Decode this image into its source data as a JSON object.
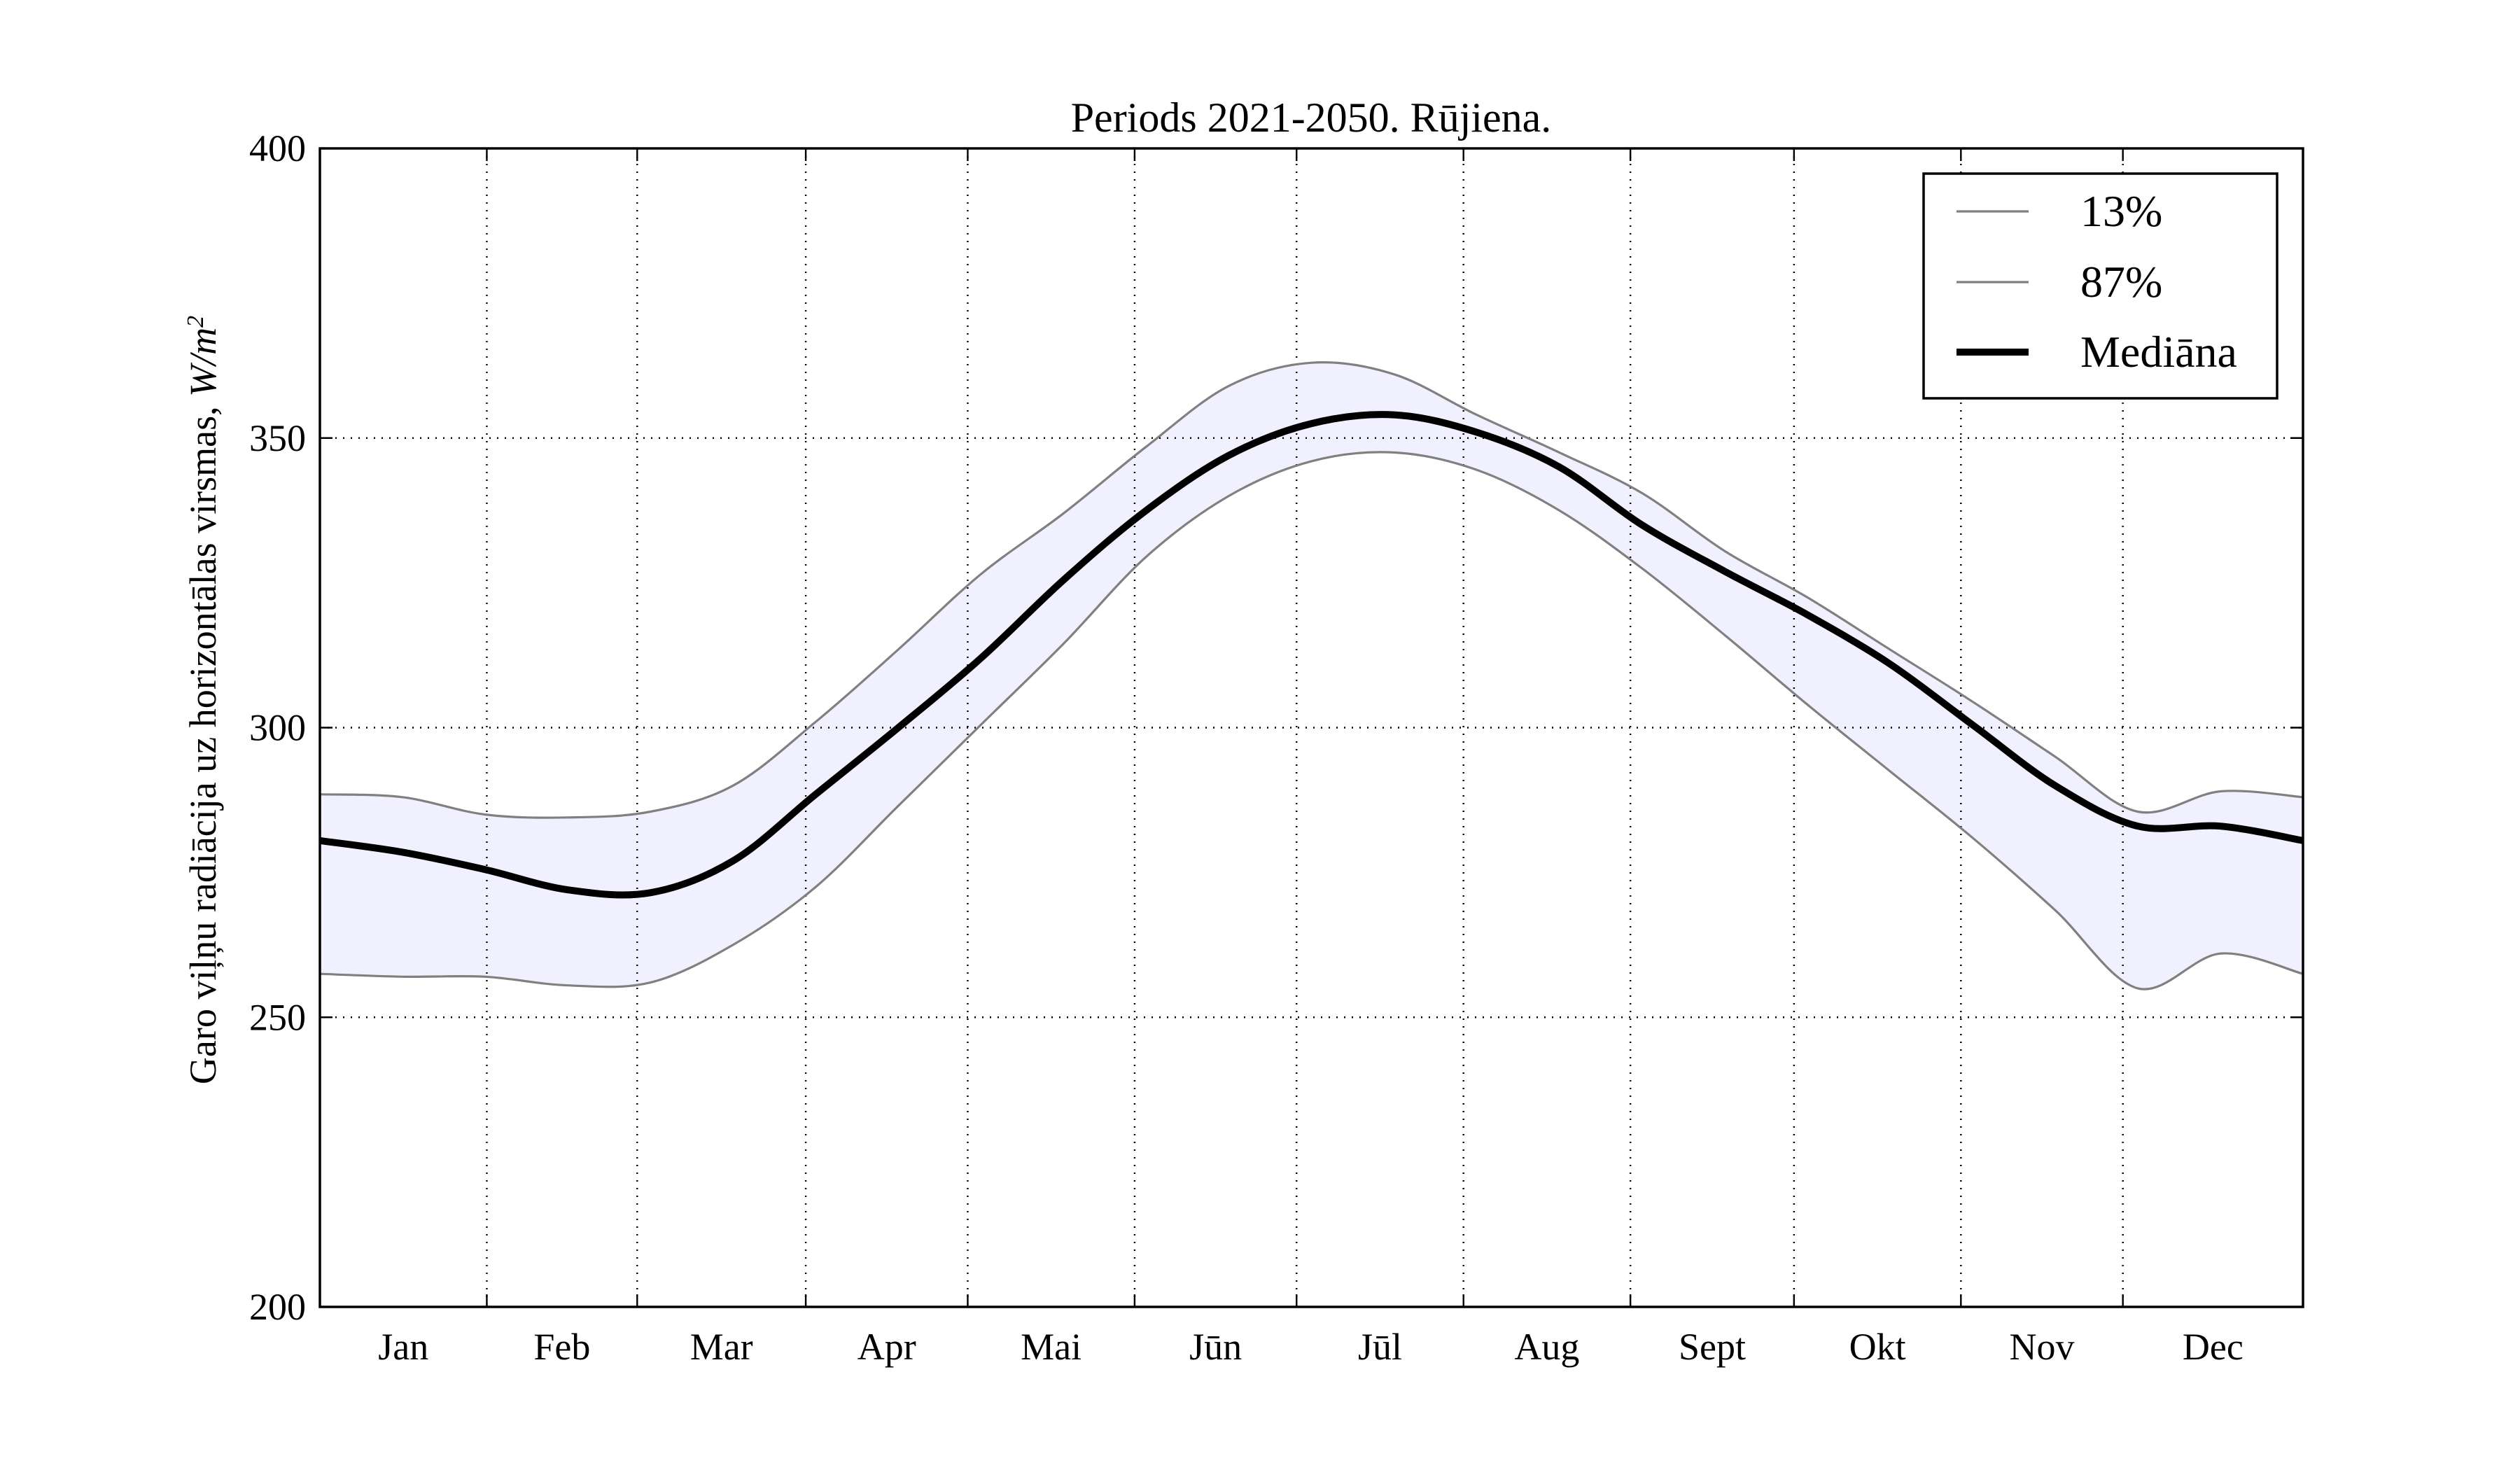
{
  "chart_data": {
    "type": "line",
    "title": "Periods 2021-2050. Rūjiena.",
    "ylabel_main": "Garo viļņu radiācija uz horizontālas virsmas, ",
    "ylabel_unit_base": "W/m",
    "ylabel_unit_exp": "2",
    "ylim": [
      200,
      400
    ],
    "yticks": [
      200,
      250,
      300,
      350,
      400
    ],
    "x_range": [
      0,
      12
    ],
    "month_boundaries": [
      0,
      1.01,
      1.92,
      2.94,
      3.92,
      4.93,
      5.91,
      6.92,
      7.93,
      8.92,
      9.93,
      10.91,
      12
    ],
    "categories": [
      "Jan",
      "Feb",
      "Mar",
      "Apr",
      "Mai",
      "Jūn",
      "Jūl",
      "Aug",
      "Sept",
      "Okt",
      "Nov",
      "Dec"
    ],
    "grid": true,
    "legend_position": "top-right",
    "band_color": "#f0f0fe",
    "x": [
      0,
      0.5,
      1,
      1.5,
      2,
      2.5,
      3,
      3.5,
      4,
      4.5,
      5,
      5.5,
      6,
      6.5,
      7,
      7.5,
      8,
      8.5,
      9,
      9.5,
      10,
      10.5,
      11,
      11.5,
      12
    ],
    "series": [
      {
        "name": "13%",
        "color": "#808080",
        "width": 3.2,
        "values": [
          288.5,
          288,
          285,
          284.5,
          285.5,
          290,
          301,
          313.5,
          326.5,
          337,
          348.5,
          359,
          363,
          361,
          354,
          347.5,
          340.5,
          330.5,
          322.5,
          313.5,
          304.5,
          295,
          285.5,
          289,
          288
        ]
      },
      {
        "name": "87%",
        "color": "#808080",
        "width": 3.2,
        "values": [
          257.5,
          257,
          257,
          255.5,
          256,
          262.5,
          272.5,
          286.5,
          300.5,
          314.5,
          329.5,
          340,
          346,
          347.5,
          344.5,
          337.5,
          327.5,
          316,
          304,
          292.5,
          281,
          268.5,
          255,
          261,
          257.5
        ]
      },
      {
        "name": "Mediāna",
        "color": "#000000",
        "width": 10,
        "values": [
          280.5,
          278.5,
          275.5,
          272,
          271.5,
          277,
          288.5,
          300,
          312,
          325.5,
          337.5,
          347,
          352.5,
          354,
          351,
          345,
          335,
          327,
          319.5,
          311,
          300.5,
          290,
          283,
          283,
          280.5
        ]
      }
    ]
  }
}
